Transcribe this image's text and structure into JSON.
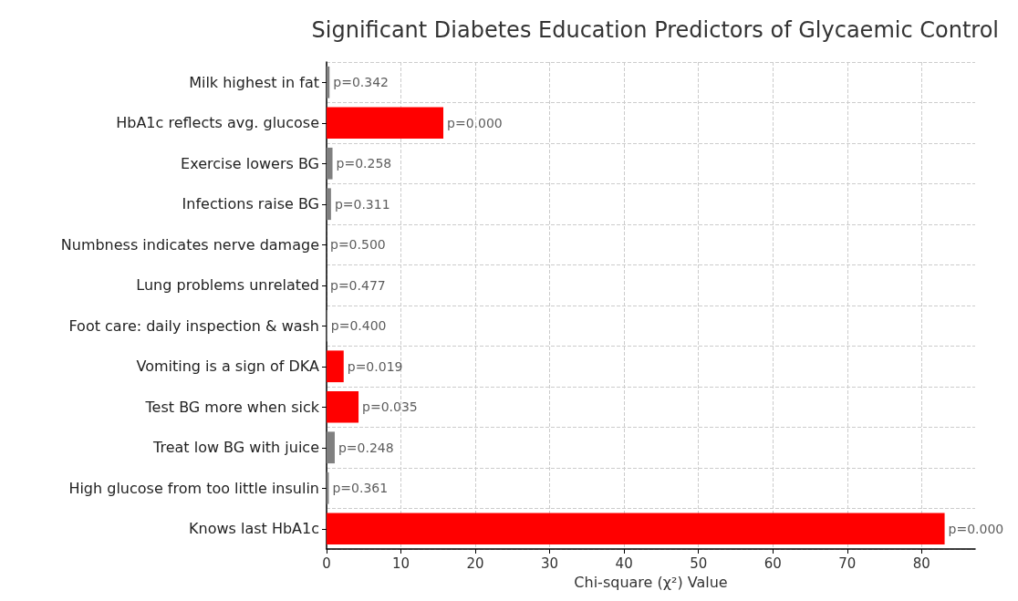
{
  "chart_data": {
    "type": "bar",
    "orientation": "horizontal",
    "title": "Significant Diabetes Education Predictors of Glycaemic Control",
    "xlabel": "Chi-square (χ²) Value",
    "categories": [
      "Milk highest in fat",
      "HbA1c reflects avg. glucose",
      "Exercise lowers BG",
      "Infections raise BG",
      "Numbness indicates nerve damage",
      "Lung problems unrelated",
      "Foot care: daily inspection & wash",
      "Vomiting is a sign of DKA",
      "Test BG more when sick",
      "Treat low BG with juice",
      "High glucose from too little insulin",
      "Knows last HbA1c"
    ],
    "values": [
      0.4,
      15.7,
      0.8,
      0.6,
      0.0,
      0.0,
      0.1,
      2.3,
      4.3,
      1.1,
      0.3,
      83.1
    ],
    "colors": [
      "#808080",
      "#ff0000",
      "#808080",
      "#808080",
      "#808080",
      "#808080",
      "#808080",
      "#ff0000",
      "#ff0000",
      "#808080",
      "#808080",
      "#ff0000"
    ],
    "annotations": [
      {
        "text": "p=0.342",
        "x": 0.4,
        "y": "Milk highest in fat"
      },
      {
        "text": "p=0.000",
        "x": 15.7,
        "y": "HbA1c reflects avg. glucose"
      },
      {
        "text": "p=0.258",
        "x": 0.8,
        "y": "Exercise lowers BG"
      },
      {
        "text": "p=0.311",
        "x": 0.6,
        "y": "Infections raise BG"
      },
      {
        "text": "p=0.500",
        "x": 0.0,
        "y": "Numbness indicates nerve damage"
      },
      {
        "text": "p=0.477",
        "x": 0.0,
        "y": "Lung problems unrelated"
      },
      {
        "text": "p=0.400",
        "x": 0.1,
        "y": "Foot care: daily inspection & wash"
      },
      {
        "text": "p=0.019",
        "x": 2.3,
        "y": "Vomiting is a sign of DKA"
      },
      {
        "text": "p=0.035",
        "x": 4.3,
        "y": "Test BG more when sick"
      },
      {
        "text": "p=0.248",
        "x": 1.1,
        "y": "Treat low BG with juice"
      },
      {
        "text": "p=0.361",
        "x": 0.3,
        "y": "High glucose from too little insulin"
      },
      {
        "text": "p=0.000",
        "x": 83.1,
        "y": "Knows last HbA1c"
      }
    ],
    "xlim": [
      0,
      87.2
    ],
    "xticks": [
      0,
      10,
      20,
      30,
      40,
      50,
      60,
      70,
      80
    ],
    "grid": true,
    "line_style": "dashed"
  }
}
